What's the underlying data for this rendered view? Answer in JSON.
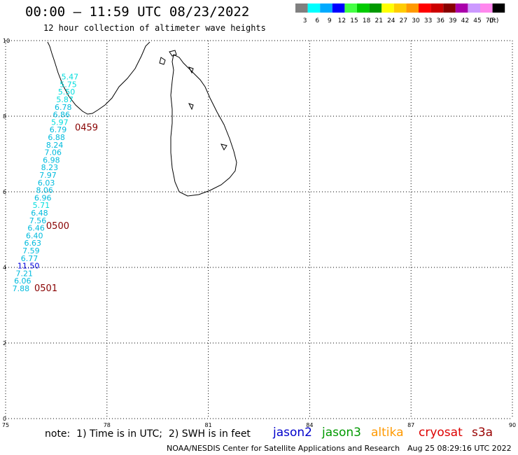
{
  "header": {
    "title": "00:00 – 11:59 UTC 08/23/2022",
    "subtitle": "12 hour collection of altimeter wave heights"
  },
  "legend": {
    "unit": "(ft)",
    "bins": [
      {
        "label": "3",
        "color": "#808080"
      },
      {
        "label": "6",
        "color": "#00ffff"
      },
      {
        "label": "9",
        "color": "#00aaff"
      },
      {
        "label": "12",
        "color": "#0000ff"
      },
      {
        "label": "15",
        "color": "#44ff44"
      },
      {
        "label": "18",
        "color": "#00cc00"
      },
      {
        "label": "21",
        "color": "#009900"
      },
      {
        "label": "24",
        "color": "#ffff00"
      },
      {
        "label": "27",
        "color": "#ffcc00"
      },
      {
        "label": "30",
        "color": "#ff9900"
      },
      {
        "label": "33",
        "color": "#ff0000"
      },
      {
        "label": "36",
        "color": "#cc0000"
      },
      {
        "label": "39",
        "color": "#880000"
      },
      {
        "label": "42",
        "color": "#aa00aa"
      },
      {
        "label": "45",
        "color": "#cc99ff"
      },
      {
        "label": "70",
        "color": "#ff88ee"
      },
      {
        "label": "",
        "color": "#000000"
      }
    ]
  },
  "map": {
    "lon_range": [
      75,
      90
    ],
    "lat_range": [
      0,
      10
    ],
    "lon_ticks": [
      "75",
      "78",
      "81",
      "84",
      "87",
      "90"
    ],
    "lat_ticks": [
      "0",
      "2",
      "4",
      "6",
      "8",
      "10"
    ],
    "grid": true
  },
  "observations": [
    {
      "value": "5.47",
      "lon": 76.65,
      "lat": 8.97,
      "color": "#00dddd"
    },
    {
      "value": "5.75",
      "lon": 76.6,
      "lat": 8.77,
      "color": "#00dddd"
    },
    {
      "value": "5.50",
      "lon": 76.55,
      "lat": 8.57,
      "color": "#00dddd"
    },
    {
      "value": "5.87",
      "lon": 76.5,
      "lat": 8.37,
      "color": "#00dddd"
    },
    {
      "value": "6.78",
      "lon": 76.45,
      "lat": 8.17,
      "color": "#00bbdd"
    },
    {
      "value": "6.86",
      "lon": 76.4,
      "lat": 7.97,
      "color": "#00bbdd"
    },
    {
      "value": "5.97",
      "lon": 76.35,
      "lat": 7.77,
      "color": "#00dddd"
    },
    {
      "value": "6.79",
      "lon": 76.3,
      "lat": 7.57,
      "color": "#00bbdd"
    },
    {
      "value": "6.88",
      "lon": 76.25,
      "lat": 7.37,
      "color": "#00bbdd"
    },
    {
      "value": "8.24",
      "lon": 76.2,
      "lat": 7.17,
      "color": "#00bbdd"
    },
    {
      "value": "7.06",
      "lon": 76.15,
      "lat": 6.97,
      "color": "#00bbdd"
    },
    {
      "value": "6.98",
      "lon": 76.1,
      "lat": 6.77,
      "color": "#00bbdd"
    },
    {
      "value": "8.23",
      "lon": 76.05,
      "lat": 6.57,
      "color": "#00bbdd"
    },
    {
      "value": "7.97",
      "lon": 76.0,
      "lat": 6.37,
      "color": "#00bbdd"
    },
    {
      "value": "6.03",
      "lon": 75.95,
      "lat": 6.17,
      "color": "#00bbdd"
    },
    {
      "value": "8.06",
      "lon": 75.9,
      "lat": 5.97,
      "color": "#00bbdd"
    },
    {
      "value": "6.96",
      "lon": 75.85,
      "lat": 5.77,
      "color": "#00bbdd"
    },
    {
      "value": "5.71",
      "lon": 75.8,
      "lat": 5.57,
      "color": "#00dddd"
    },
    {
      "value": "6.48",
      "lon": 75.75,
      "lat": 5.37,
      "color": "#00bbdd"
    },
    {
      "value": "7.56",
      "lon": 75.7,
      "lat": 5.17,
      "color": "#00bbdd"
    },
    {
      "value": "6.46",
      "lon": 75.65,
      "lat": 4.97,
      "color": "#00bbdd"
    },
    {
      "value": "6.40",
      "lon": 75.6,
      "lat": 4.77,
      "color": "#00bbdd"
    },
    {
      "value": "6.63",
      "lon": 75.55,
      "lat": 4.57,
      "color": "#00bbdd"
    },
    {
      "value": "7.59",
      "lon": 75.5,
      "lat": 4.37,
      "color": "#00bbdd"
    },
    {
      "value": "6.77",
      "lon": 75.45,
      "lat": 4.17,
      "color": "#00bbdd"
    },
    {
      "value": "11.50",
      "lon": 75.35,
      "lat": 3.97,
      "color": "#0000dd"
    },
    {
      "value": "7.21",
      "lon": 75.3,
      "lat": 3.77,
      "color": "#00bbdd"
    },
    {
      "value": "6.06",
      "lon": 75.25,
      "lat": 3.57,
      "color": "#00bbdd"
    },
    {
      "value": "7.88",
      "lon": 75.2,
      "lat": 3.37,
      "color": "#00bbdd"
    }
  ],
  "pass_times": [
    {
      "label": "0459",
      "lon": 77.05,
      "lat": 7.62,
      "color": "#880000"
    },
    {
      "label": "0500",
      "lon": 76.2,
      "lat": 5.02,
      "color": "#880000"
    },
    {
      "label": "0501",
      "lon": 75.85,
      "lat": 3.37,
      "color": "#880000"
    }
  ],
  "footer": {
    "note": "note:  1) Time is in UTC;  2) SWH is in feet",
    "satellites": [
      {
        "name": "jason2",
        "color": "#0000cc"
      },
      {
        "name": "jason3",
        "color": "#009900"
      },
      {
        "name": "altika",
        "color": "#ff9900"
      },
      {
        "name": "cryosat",
        "color": "#dd0000"
      },
      {
        "name": "s3a",
        "color": "#990000"
      }
    ],
    "credit": "NOAA/NESDIS Center for Satellite Applications and Research",
    "timestamp": "Aug 25 08:29:16 UTC 2022"
  }
}
